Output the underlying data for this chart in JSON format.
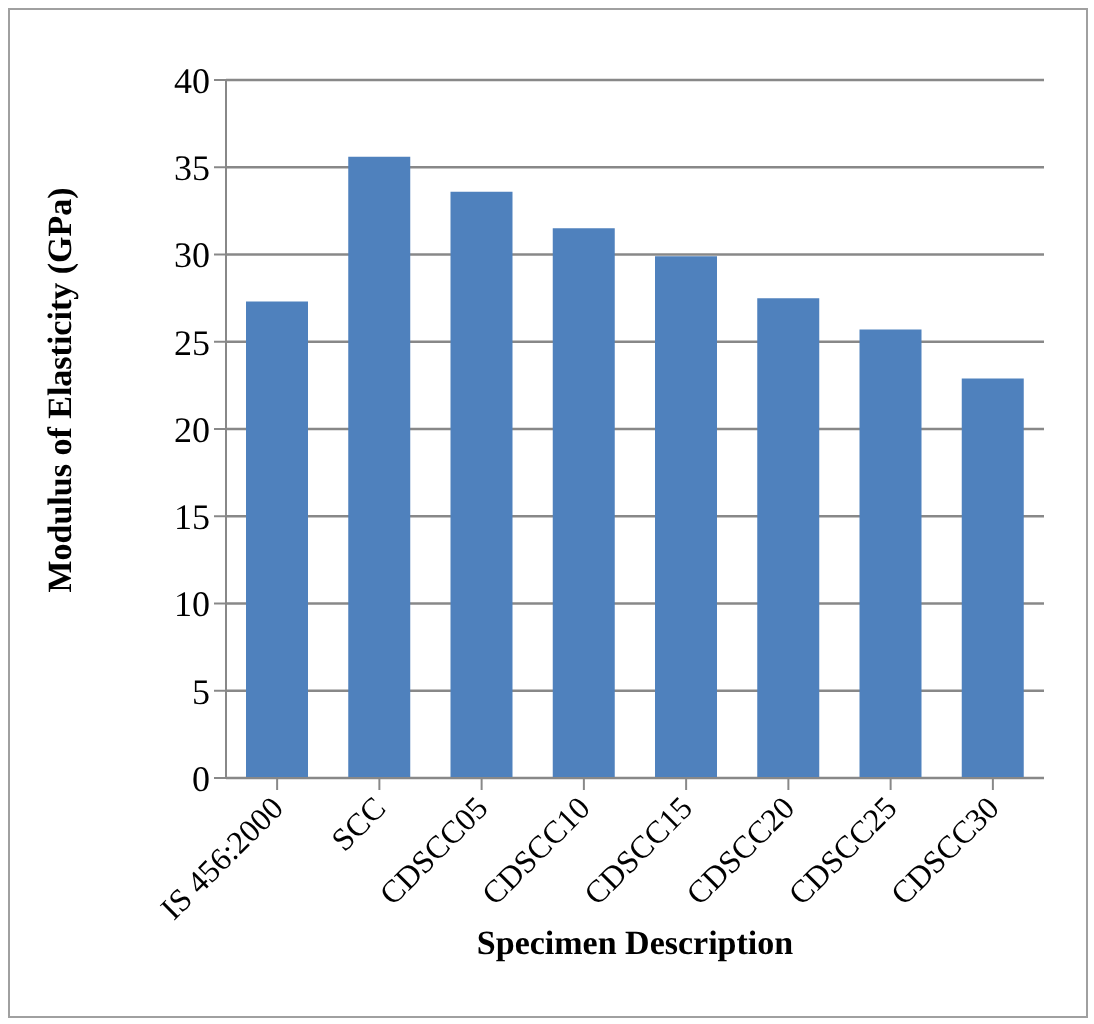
{
  "chart_data": {
    "type": "bar",
    "xlabel": "Specimen Description",
    "ylabel": "Modulus of Elasticity (GPa)",
    "categories": [
      "IS 456:2000",
      "SCC",
      "CDSCC05",
      "CDSCC10",
      "CDSCC15",
      "CDSCC20",
      "CDSCC25",
      "CDSCC30"
    ],
    "values": [
      27.3,
      35.6,
      33.6,
      31.5,
      29.9,
      27.5,
      25.7,
      22.9
    ],
    "color": "#4f81bd",
    "ylim": [
      0,
      40
    ],
    "yticks": [
      0,
      5,
      10,
      15,
      20,
      25,
      30,
      35,
      40
    ],
    "grid": "y",
    "legend": false
  }
}
